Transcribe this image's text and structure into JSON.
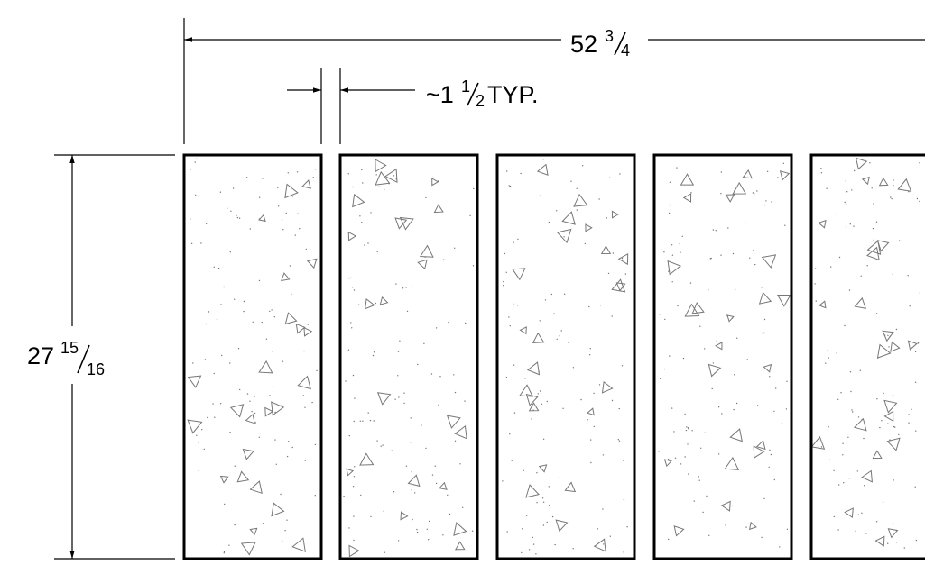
{
  "dimensions": {
    "overall_width": {
      "whole": "52",
      "numerator": "3",
      "denominator": "4"
    },
    "gap": {
      "prefix": "~1",
      "numerator": "1",
      "denominator": "2",
      "suffix": " TYP."
    },
    "height": {
      "whole": "27",
      "numerator": "15",
      "denominator": "16"
    }
  },
  "colors": {
    "line": "#000000",
    "hatch": "#777777"
  },
  "panels_visible": 5
}
